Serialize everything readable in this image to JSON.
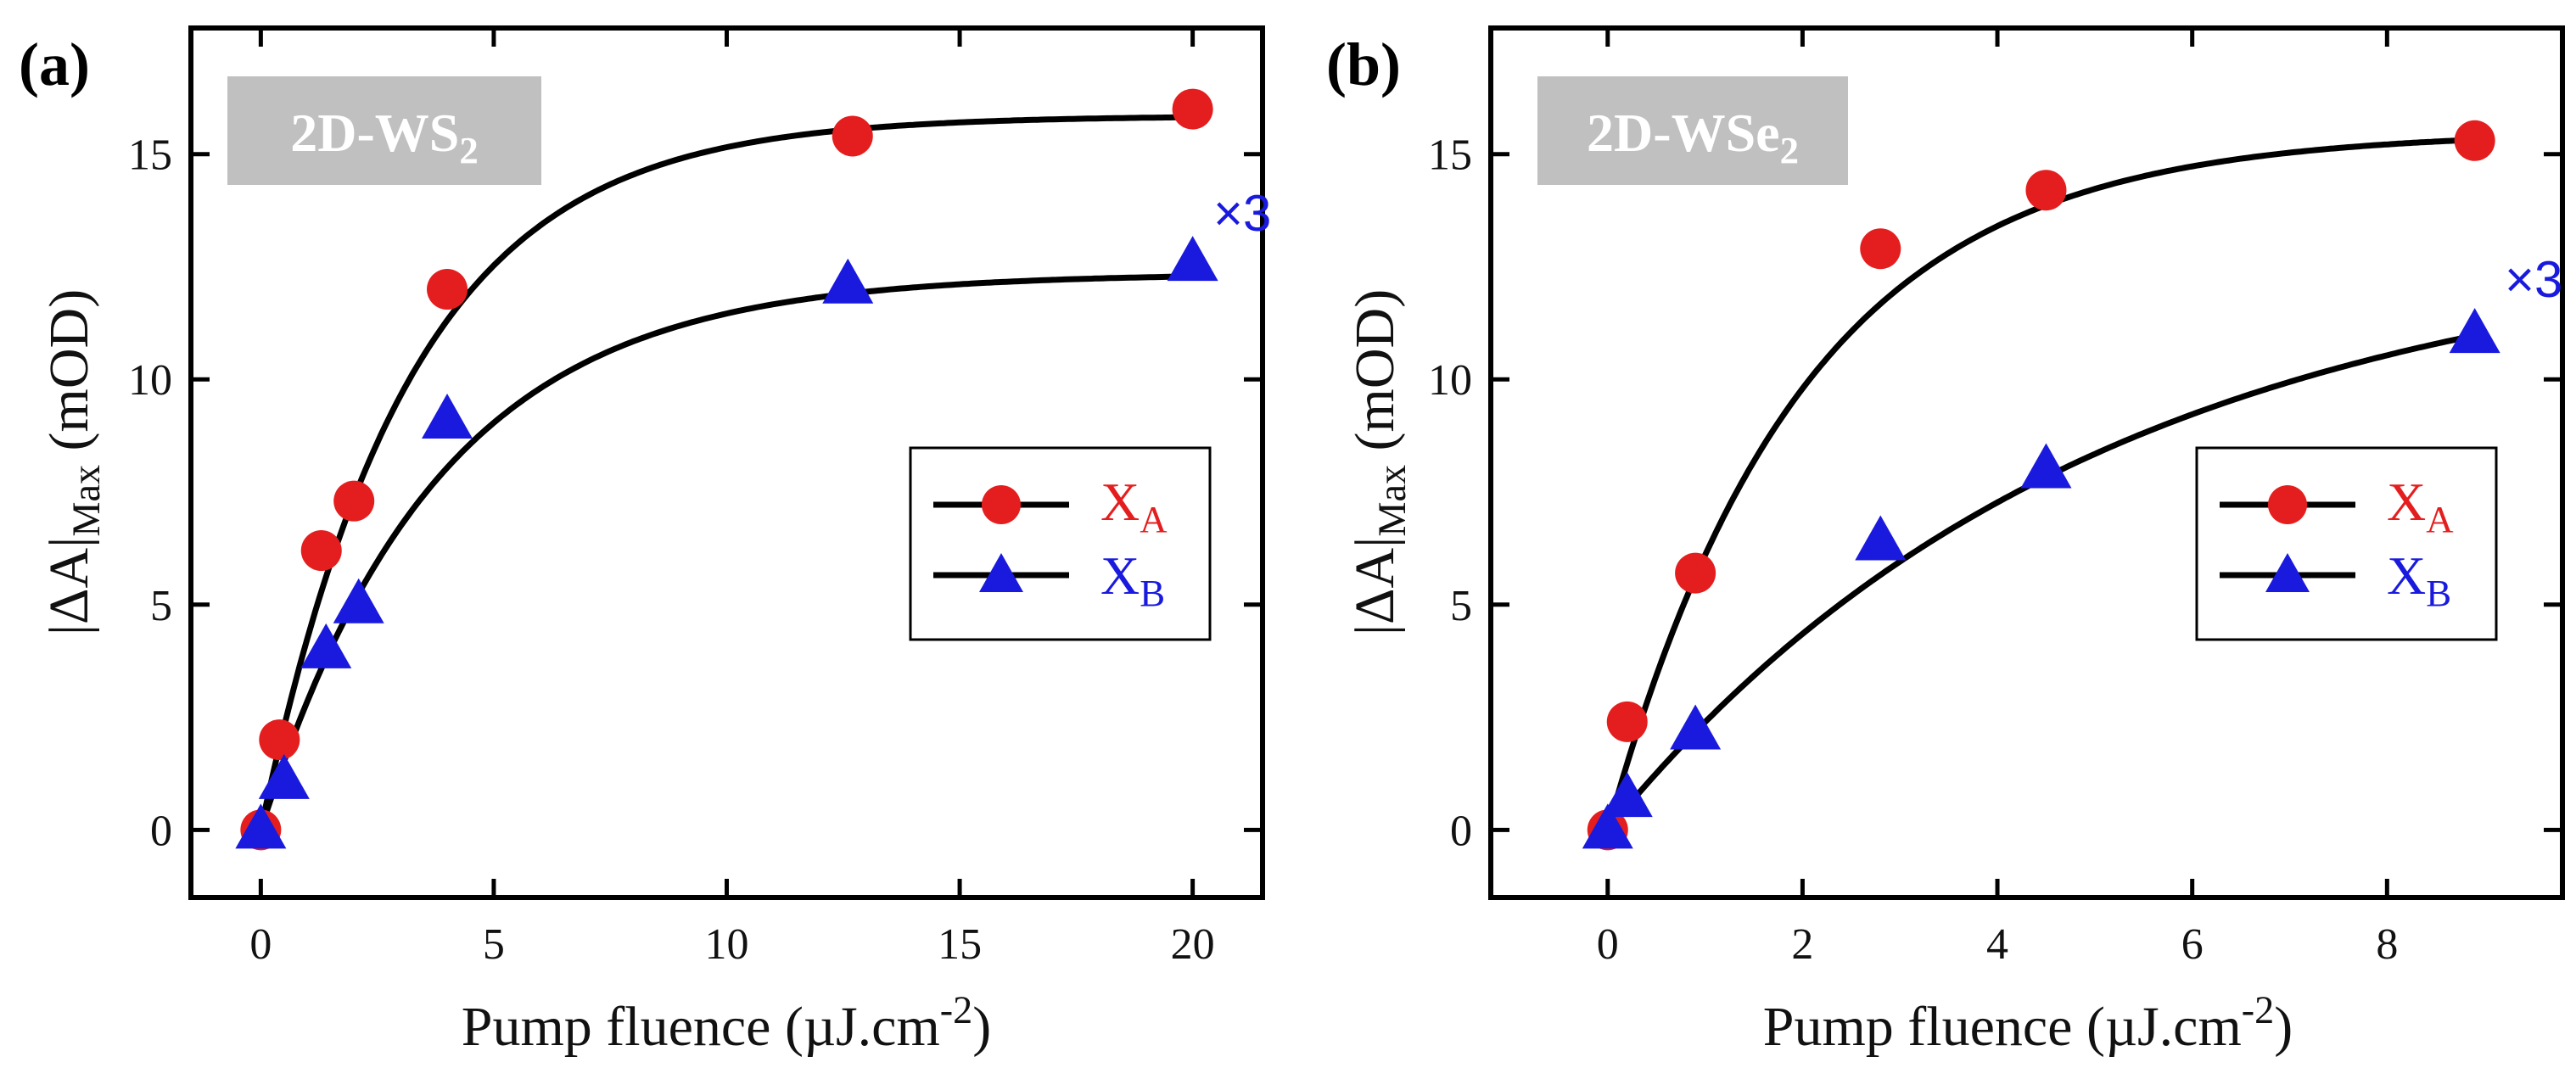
{
  "colors": {
    "xa": "#e41e1e",
    "xb": "#1a1adf",
    "fit": "#000000",
    "badge_bg": "#c0c0c0"
  },
  "chart_data": [
    {
      "type": "scatter",
      "panel_label": "(a)",
      "material": {
        "base": "2D-WS",
        "sub": "2"
      },
      "xlabel": {
        "text": "Pump fluence (µJ.cm",
        "sup": "-2",
        "close": ")"
      },
      "ylabel": {
        "prefix": "|ΔA|",
        "sub": "Max",
        "suffix": " (mOD)"
      },
      "xlim": [
        -1.5,
        21.5
      ],
      "ylim": [
        -1.5,
        17.8
      ],
      "xticks": [
        0,
        5,
        10,
        15,
        20
      ],
      "yticks": [
        0,
        5,
        10,
        15
      ],
      "legend": [
        {
          "base": "X",
          "sub": "A",
          "marker": "circle"
        },
        {
          "base": "X",
          "sub": "B",
          "marker": "triangle"
        }
      ],
      "series": [
        {
          "name": "X_A",
          "marker": "circle",
          "x": [
            0,
            0.4,
            1.3,
            2.0,
            4.0,
            12.7,
            20.0
          ],
          "y": [
            0,
            2.0,
            6.2,
            7.3,
            12.0,
            15.4,
            16.0
          ]
        },
        {
          "name": "X_B",
          "marker": "triangle",
          "x": [
            0,
            0.5,
            1.4,
            2.1,
            4.0,
            12.6,
            20.0
          ],
          "y": [
            0,
            1.1,
            4.0,
            5.0,
            9.1,
            12.1,
            12.6
          ]
        }
      ],
      "fits": [
        {
          "series": "X_A",
          "amplitude": 15.85,
          "scale": 3.2
        },
        {
          "series": "X_B",
          "amplitude": 12.35,
          "scale": 3.8
        }
      ],
      "annotation": {
        "text": "×3",
        "series": "X_B"
      }
    },
    {
      "type": "scatter",
      "panel_label": "(b)",
      "material": {
        "base": "2D-WSe",
        "sub": "2"
      },
      "xlabel": {
        "text": "Pump fluence (µJ.cm",
        "sup": "-2",
        "close": ")"
      },
      "ylabel": {
        "prefix": "|ΔA|",
        "sub": "Max",
        "suffix": " (mOD)"
      },
      "xlim": [
        -1.2,
        9.8
      ],
      "ylim": [
        -1.5,
        17.8
      ],
      "xticks": [
        0,
        2,
        4,
        6,
        8
      ],
      "yticks": [
        0,
        5,
        10,
        15
      ],
      "legend": [
        {
          "base": "X",
          "sub": "A",
          "marker": "circle"
        },
        {
          "base": "X",
          "sub": "B",
          "marker": "triangle"
        }
      ],
      "series": [
        {
          "name": "X_A",
          "marker": "circle",
          "x": [
            0,
            0.2,
            0.9,
            2.8,
            4.5,
            8.9
          ],
          "y": [
            0,
            2.4,
            5.7,
            12.9,
            14.2,
            15.3
          ]
        },
        {
          "name": "X_B",
          "marker": "triangle",
          "x": [
            0,
            0.2,
            0.9,
            2.8,
            4.5,
            8.9
          ],
          "y": [
            0,
            0.7,
            2.2,
            6.4,
            8.0,
            11.0
          ]
        }
      ],
      "fits": [
        {
          "series": "X_A",
          "amplitude": 15.5,
          "scale": 2.0
        },
        {
          "series": "X_B",
          "amplitude": 13.2,
          "scale": 5.0
        }
      ],
      "annotation": {
        "text": "×3",
        "series": "X_B"
      }
    }
  ]
}
